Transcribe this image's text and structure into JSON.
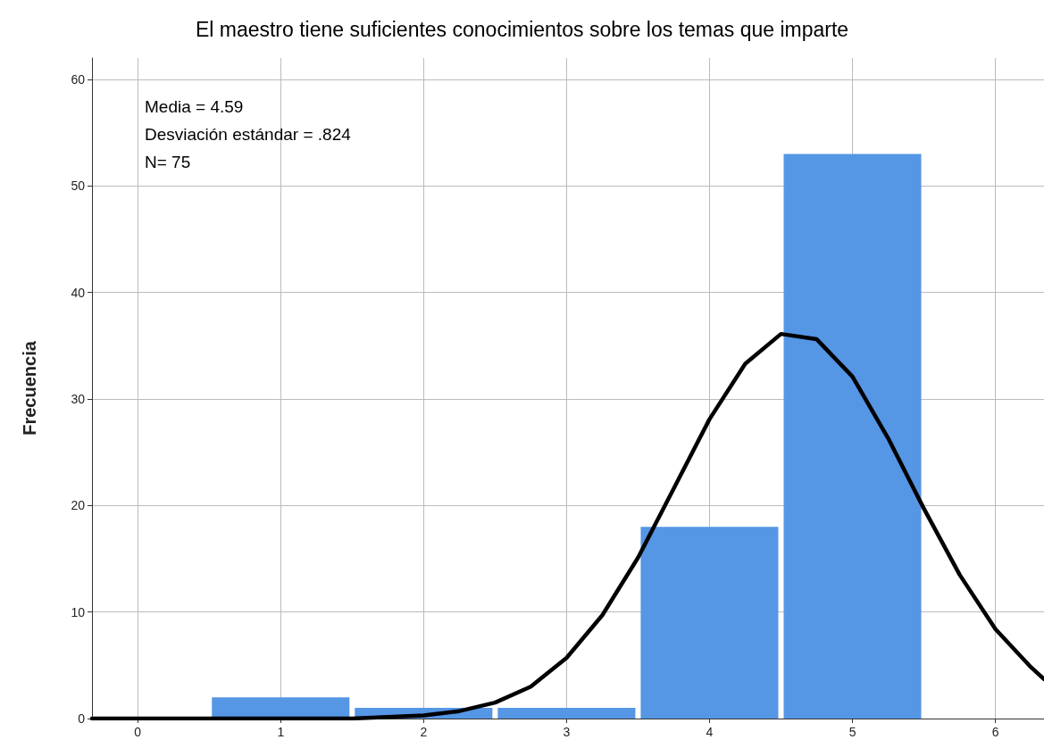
{
  "chart_data": {
    "type": "histogram",
    "title": "El maestro tiene suficientes conocimientos sobre los temas que imparte",
    "ylabel": "Frecuencia",
    "bins": [
      0.5,
      1.5,
      2.5,
      3.5,
      4.5,
      5.5
    ],
    "values": [
      2,
      1,
      1,
      18,
      53
    ],
    "color": "#5596e5",
    "series": [
      {
        "type": "line",
        "color": "#000000",
        "x": [
          -0.32,
          0,
          1,
          1.5,
          2,
          2.25,
          2.5,
          2.75,
          3,
          3.25,
          3.5,
          3.75,
          4,
          4.25,
          4.5,
          4.75,
          5,
          5.25,
          5.5,
          5.75,
          6,
          6.25,
          6.34
        ],
        "values": [
          0,
          0,
          0,
          0,
          0.3,
          0.7,
          1.5,
          3,
          5.7,
          9.7,
          15.1,
          21.6,
          28.1,
          33.3,
          36.1,
          35.6,
          32.1,
          26.3,
          19.7,
          13.5,
          8.4,
          4.8,
          3.7
        ]
      }
    ],
    "annotations": [
      "Media = 4.59",
      "Desviación estándar = .824",
      "N= 75"
    ],
    "xlim": [
      -0.32,
      6.34
    ],
    "xticks": [
      0,
      1,
      2,
      3,
      4,
      5,
      6
    ],
    "ylim": [
      0,
      62
    ],
    "yticks": [
      0,
      10,
      20,
      30,
      40,
      50,
      60
    ],
    "grid": true,
    "marker": "none",
    "line_style": "solid"
  }
}
